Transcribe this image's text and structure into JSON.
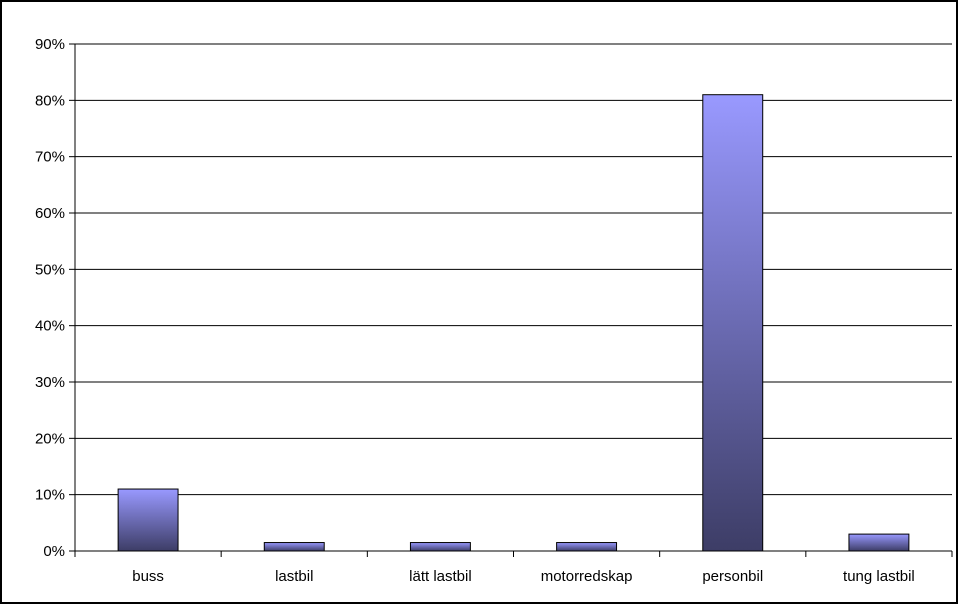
{
  "chart_data": {
    "type": "bar",
    "title": "",
    "xlabel": "",
    "ylabel": "",
    "categories": [
      "buss",
      "lastbil",
      "lätt lastbil",
      "motorredskap",
      "personbil",
      "tung lastbil"
    ],
    "values": [
      11,
      1.5,
      1.5,
      1.5,
      81,
      3
    ],
    "ylim": [
      0,
      90
    ],
    "yticks": [
      0,
      10,
      20,
      30,
      40,
      50,
      60,
      70,
      80,
      90
    ],
    "ytick_labels": [
      "0%",
      "10%",
      "20%",
      "30%",
      "40%",
      "50%",
      "60%",
      "70%",
      "80%",
      "90%"
    ],
    "value_format": "percent",
    "grid": true,
    "legend": "none",
    "colors": {
      "bar_top": "#9999ff",
      "bar_bottom": "#3d3d66",
      "bar_stroke": "#000000",
      "grid": "#000000",
      "axis": "#000000"
    }
  }
}
